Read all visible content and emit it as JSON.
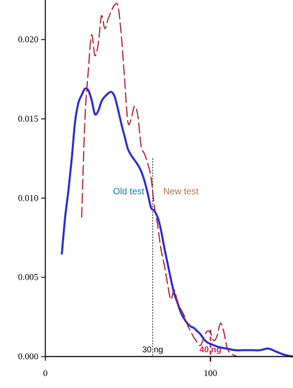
{
  "chart_data": {
    "type": "line",
    "title": "",
    "xlabel": "",
    "ylabel": "",
    "xlim": [
      0,
      150
    ],
    "ylim": [
      0,
      0.0225
    ],
    "x_ticks": [
      0,
      100
    ],
    "x_tick_labels": [
      "0",
      "100"
    ],
    "y_ticks": [
      0.0,
      0.005,
      0.01,
      0.015,
      0.02
    ],
    "y_tick_labels": [
      "0.000",
      "0.005",
      "0.010",
      "0.015",
      "0.020"
    ],
    "grid": false,
    "series": [
      {
        "name": "Old test",
        "color": "#3333cc",
        "style": "solid",
        "x": [
          10,
          12,
          14,
          16,
          18,
          20,
          22,
          24,
          26,
          28,
          30,
          32,
          34,
          36,
          38,
          40,
          42,
          44,
          46,
          48,
          50,
          52,
          54,
          56,
          58,
          60,
          62,
          64,
          66,
          68,
          70,
          72,
          74,
          76,
          78,
          80,
          82,
          84,
          86,
          88,
          90,
          92,
          94,
          96,
          98,
          100,
          105,
          110,
          115,
          120,
          125,
          130,
          135,
          140,
          145,
          150
        ],
        "y": [
          0.0065,
          0.0088,
          0.0105,
          0.0125,
          0.0148,
          0.016,
          0.0165,
          0.0169,
          0.0168,
          0.0162,
          0.0153,
          0.0155,
          0.0161,
          0.0164,
          0.0166,
          0.0167,
          0.0164,
          0.0156,
          0.0147,
          0.0139,
          0.0131,
          0.0127,
          0.0124,
          0.0121,
          0.0117,
          0.0111,
          0.0103,
          0.0094,
          0.0092,
          0.0088,
          0.008,
          0.0069,
          0.0059,
          0.0049,
          0.004,
          0.0034,
          0.0028,
          0.0024,
          0.0021,
          0.0019,
          0.0018,
          0.0016,
          0.0014,
          0.0011,
          0.0009,
          0.0008,
          0.0006,
          0.0005,
          0.0004,
          0.0004,
          0.0004,
          0.0004,
          0.0005,
          0.0003,
          0.0001,
          0.0
        ]
      },
      {
        "name": "New test",
        "color": "#aa2233",
        "style": "dashed",
        "x": [
          22,
          24,
          26,
          28,
          30,
          32,
          34,
          36,
          38,
          40,
          42,
          44,
          46,
          48,
          50,
          52,
          54,
          56,
          58,
          60,
          62,
          64,
          66,
          68,
          70,
          72,
          74,
          76,
          78,
          80,
          82,
          84,
          86,
          88,
          90,
          92,
          94,
          96,
          98,
          100,
          102,
          104,
          106,
          108,
          110,
          112,
          114,
          116
        ],
        "y": [
          0.0088,
          0.015,
          0.018,
          0.0203,
          0.019,
          0.0197,
          0.0215,
          0.0207,
          0.0213,
          0.0218,
          0.0222,
          0.0221,
          0.0203,
          0.0175,
          0.0148,
          0.015,
          0.0158,
          0.0152,
          0.0133,
          0.0128,
          0.0122,
          0.0113,
          0.0095,
          0.0083,
          0.0068,
          0.0058,
          0.0046,
          0.0036,
          0.0042,
          0.0035,
          0.003,
          0.0026,
          0.002,
          0.0016,
          0.0012,
          0.0009,
          0.0007,
          0.0012,
          0.0016,
          0.0015,
          0.001,
          0.0013,
          0.0021,
          0.0016,
          0.0006,
          0.0002,
          0.0001,
          0.0
        ]
      }
    ],
    "labels": {
      "old_test": "Old test",
      "new_test": "New test"
    },
    "markers": [
      {
        "x": 65,
        "label": "30 ng",
        "color": "#000000",
        "label_color": "#000000",
        "style": "dotted",
        "top_y": 0.0125
      },
      {
        "x": 100,
        "label": "40 ng",
        "color": "#cc1144",
        "label_color": "#dd2255",
        "style": "dashed",
        "top_y": 0.0017
      }
    ]
  }
}
